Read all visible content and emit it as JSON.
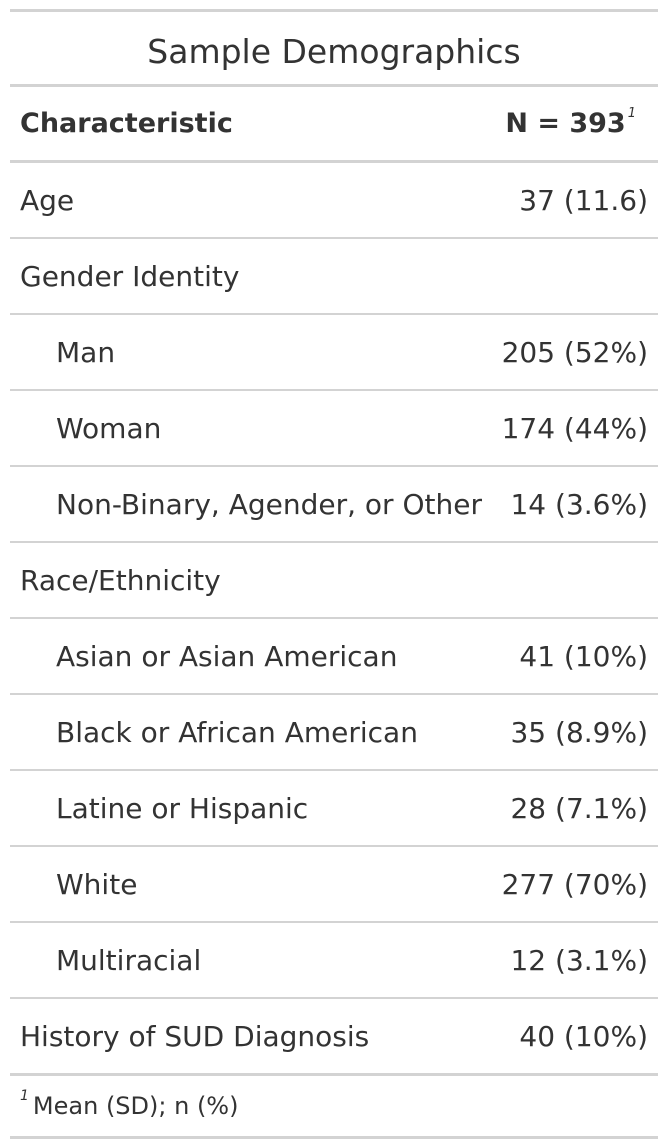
{
  "table": {
    "title": "Sample Demographics",
    "header": {
      "characteristic": "Characteristic",
      "n": "N = 393",
      "n_footnote_mark": "1"
    },
    "rows": [
      {
        "label": "Age",
        "value": "37 (11.6)",
        "indent": false
      },
      {
        "label": "Gender Identity",
        "value": "",
        "indent": false
      },
      {
        "label": "Man",
        "value": "205 (52%)",
        "indent": true
      },
      {
        "label": "Woman",
        "value": "174 (44%)",
        "indent": true
      },
      {
        "label": "Non-Binary, Agender, or Other",
        "value": "14 (3.6%)",
        "indent": true
      },
      {
        "label": "Race/Ethnicity",
        "value": "",
        "indent": false
      },
      {
        "label": "Asian or Asian American",
        "value": "41 (10%)",
        "indent": true
      },
      {
        "label": "Black or African American",
        "value": "35 (8.9%)",
        "indent": true
      },
      {
        "label": "Latine or Hispanic",
        "value": "28 (7.1%)",
        "indent": true
      },
      {
        "label": "White",
        "value": "277 (70%)",
        "indent": true
      },
      {
        "label": "Multiracial",
        "value": "12 (3.1%)",
        "indent": true
      },
      {
        "label": "History of SUD Diagnosis",
        "value": "40 (10%)",
        "indent": false
      }
    ],
    "footnote": {
      "mark": "1",
      "text": "Mean (SD); n (%)"
    }
  }
}
